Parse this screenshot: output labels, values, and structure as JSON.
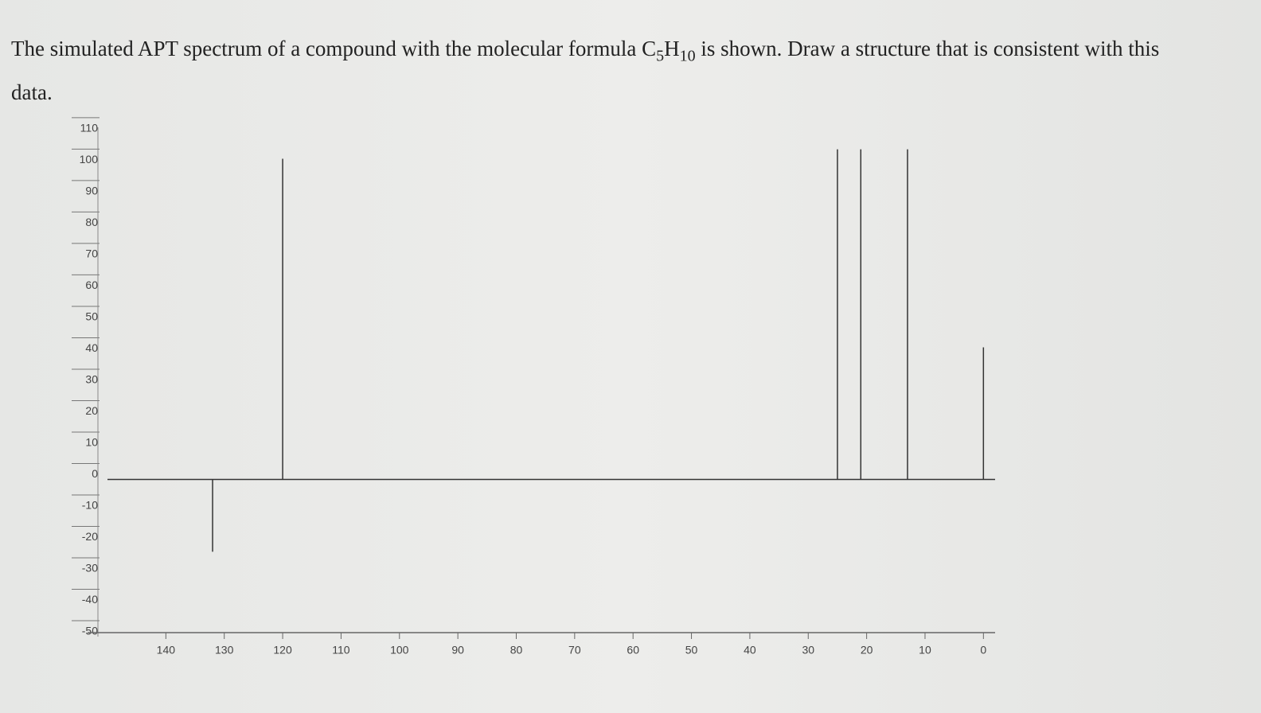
{
  "question": {
    "text_1": "The simulated APT spectrum of a compound with the molecular formula ",
    "c": "C",
    "c_sub": "5",
    "h": "H",
    "h_sub": "10",
    "text_2": " is shown. Draw a structure that is consistent with this data."
  },
  "chart_data": {
    "type": "stick",
    "x": [
      132,
      120,
      25,
      21,
      13,
      0
    ],
    "values": [
      -23,
      102,
      105,
      105,
      105,
      42
    ],
    "color": "#333333",
    "xlim": [
      150,
      -2
    ],
    "xticks": [
      140,
      130,
      120,
      110,
      100,
      90,
      80,
      70,
      60,
      50,
      40,
      30,
      20,
      10,
      0
    ],
    "ylim": [
      -50,
      112
    ],
    "yticks": [
      -50,
      -40,
      -30,
      -20,
      -10,
      0,
      10,
      20,
      30,
      40,
      50,
      60,
      70,
      80,
      90,
      100,
      110
    ]
  }
}
